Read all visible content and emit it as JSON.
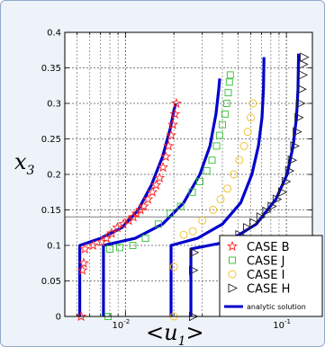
{
  "chart_data": {
    "type": "scatter",
    "xlabel": "<u",
    "xlabel_sub": "1",
    "xlabel_close": ">",
    "ylabel": "x",
    "ylabel_sub": "3",
    "xscale": "log",
    "xlim": [
      0.0042,
      0.145
    ],
    "ylim": [
      0,
      0.4
    ],
    "grid": true,
    "legend_position": "bottom-right",
    "x_tick_labels": [
      {
        "value": 0.01,
        "label": "10",
        "exp": "-2"
      },
      {
        "value": 0.1,
        "label": "10",
        "exp": "-1"
      }
    ],
    "y_ticks": [
      0,
      0.05,
      0.1,
      0.15,
      0.2,
      0.25,
      0.3,
      0.35,
      0.4
    ],
    "y_tick_labels": [
      "0",
      "0.05",
      "0.1",
      "0.15",
      "0.2",
      "0.25",
      "0.3",
      "0.35",
      "0.4"
    ],
    "reference_line_y": 0.14,
    "series": [
      {
        "name": "CASE B",
        "marker": "star",
        "color": "#ff2020",
        "points": [
          [
            0.0053,
            0.0
          ],
          [
            0.0054,
            0.065
          ],
          [
            0.0055,
            0.075
          ],
          [
            0.0056,
            0.095
          ],
          [
            0.0063,
            0.1
          ],
          [
            0.0071,
            0.105
          ],
          [
            0.0076,
            0.11
          ],
          [
            0.0082,
            0.117
          ],
          [
            0.0089,
            0.125
          ],
          [
            0.0097,
            0.13
          ],
          [
            0.0105,
            0.135
          ],
          [
            0.0112,
            0.14
          ],
          [
            0.0117,
            0.145
          ],
          [
            0.0124,
            0.15
          ],
          [
            0.013,
            0.155
          ],
          [
            0.0138,
            0.165
          ],
          [
            0.0147,
            0.175
          ],
          [
            0.0155,
            0.185
          ],
          [
            0.0163,
            0.195
          ],
          [
            0.0171,
            0.21
          ],
          [
            0.0178,
            0.225
          ],
          [
            0.0185,
            0.24
          ],
          [
            0.0192,
            0.255
          ],
          [
            0.0197,
            0.27
          ],
          [
            0.0203,
            0.285
          ],
          [
            0.0207,
            0.3
          ]
        ]
      },
      {
        "name": "CASE J",
        "marker": "square",
        "color": "#30c030",
        "points": [
          [
            0.0078,
            0.0
          ],
          [
            0.008,
            0.095
          ],
          [
            0.0092,
            0.097
          ],
          [
            0.0111,
            0.1
          ],
          [
            0.0133,
            0.11
          ],
          [
            0.016,
            0.13
          ],
          [
            0.019,
            0.145
          ],
          [
            0.022,
            0.155
          ],
          [
            0.026,
            0.175
          ],
          [
            0.029,
            0.19
          ],
          [
            0.032,
            0.205
          ],
          [
            0.0345,
            0.22
          ],
          [
            0.0368,
            0.24
          ],
          [
            0.0384,
            0.255
          ],
          [
            0.04,
            0.27
          ],
          [
            0.0415,
            0.285
          ],
          [
            0.0425,
            0.3
          ],
          [
            0.0435,
            0.315
          ],
          [
            0.0442,
            0.33
          ],
          [
            0.0448,
            0.34
          ]
        ]
      },
      {
        "name": "CASE I",
        "marker": "circle",
        "color": "#f0c020",
        "points": [
          [
            0.02,
            0.0
          ],
          [
            0.02,
            0.07
          ],
          [
            0.023,
            0.115
          ],
          [
            0.0262,
            0.12
          ],
          [
            0.03,
            0.135
          ],
          [
            0.035,
            0.15
          ],
          [
            0.039,
            0.165
          ],
          [
            0.043,
            0.18
          ],
          [
            0.047,
            0.2
          ],
          [
            0.051,
            0.22
          ],
          [
            0.0545,
            0.24
          ],
          [
            0.0575,
            0.26
          ],
          [
            0.06,
            0.28
          ],
          [
            0.0618,
            0.3
          ]
        ]
      },
      {
        "name": "CASE H",
        "marker": "triangle-right",
        "color": "#202020",
        "points": [
          [
            0.0263,
            0.0
          ],
          [
            0.0263,
            0.065
          ],
          [
            0.0266,
            0.09
          ],
          [
            0.045,
            0.1
          ],
          [
            0.051,
            0.115
          ],
          [
            0.057,
            0.125
          ],
          [
            0.0625,
            0.132
          ],
          [
            0.069,
            0.14
          ],
          [
            0.075,
            0.148
          ],
          [
            0.081,
            0.155
          ],
          [
            0.087,
            0.165
          ],
          [
            0.094,
            0.175
          ],
          [
            0.099,
            0.19
          ],
          [
            0.104,
            0.205
          ],
          [
            0.108,
            0.22
          ],
          [
            0.112,
            0.24
          ],
          [
            0.116,
            0.26
          ],
          [
            0.119,
            0.28
          ],
          [
            0.122,
            0.3
          ],
          [
            0.124,
            0.32
          ],
          [
            0.126,
            0.34
          ],
          [
            0.127,
            0.355
          ],
          [
            0.1285,
            0.365
          ]
        ]
      },
      {
        "name": "analytic solution",
        "marker": "line",
        "color": "#0000cc",
        "curves": [
          [
            [
              0.0052,
              0.0
            ],
            [
              0.0052,
              0.1
            ],
            [
              0.007,
              0.11
            ],
            [
              0.0095,
              0.125
            ],
            [
              0.012,
              0.15
            ],
            [
              0.0145,
              0.185
            ],
            [
              0.017,
              0.225
            ],
            [
              0.019,
              0.265
            ],
            [
              0.02,
              0.29
            ],
            [
              0.0205,
              0.3
            ]
          ],
          [
            [
              0.0073,
              0.0
            ],
            [
              0.0073,
              0.1
            ],
            [
              0.0115,
              0.11
            ],
            [
              0.017,
              0.13
            ],
            [
              0.023,
              0.16
            ],
            [
              0.029,
              0.2
            ],
            [
              0.0335,
              0.24
            ],
            [
              0.0365,
              0.285
            ],
            [
              0.038,
              0.32
            ],
            [
              0.0385,
              0.335
            ]
          ],
          [
            [
              0.0192,
              0.0
            ],
            [
              0.0192,
              0.1
            ],
            [
              0.028,
              0.11
            ],
            [
              0.04,
              0.13
            ],
            [
              0.052,
              0.16
            ],
            [
              0.061,
              0.2
            ],
            [
              0.067,
              0.24
            ],
            [
              0.0705,
              0.28
            ],
            [
              0.072,
              0.32
            ],
            [
              0.0725,
              0.365
            ]
          ],
          [
            [
              0.0255,
              0.0
            ],
            [
              0.0255,
              0.095
            ],
            [
              0.043,
              0.105
            ],
            [
              0.065,
              0.13
            ],
            [
              0.086,
              0.165
            ],
            [
              0.101,
              0.2
            ],
            [
              0.11,
              0.24
            ],
            [
              0.1155,
              0.28
            ],
            [
              0.118,
              0.32
            ],
            [
              0.119,
              0.37
            ]
          ]
        ]
      }
    ],
    "legend": [
      {
        "label": "CASE B",
        "marker": "star",
        "color": "#ff2020"
      },
      {
        "label": "CASE J",
        "marker": "square",
        "color": "#30c030"
      },
      {
        "label": "CASE I",
        "marker": "circle",
        "color": "#f0c020"
      },
      {
        "label": "CASE H",
        "marker": "triangle-right",
        "color": "#202020"
      },
      {
        "label": "analytic solution",
        "marker": "line",
        "color": "#0000cc"
      }
    ]
  }
}
